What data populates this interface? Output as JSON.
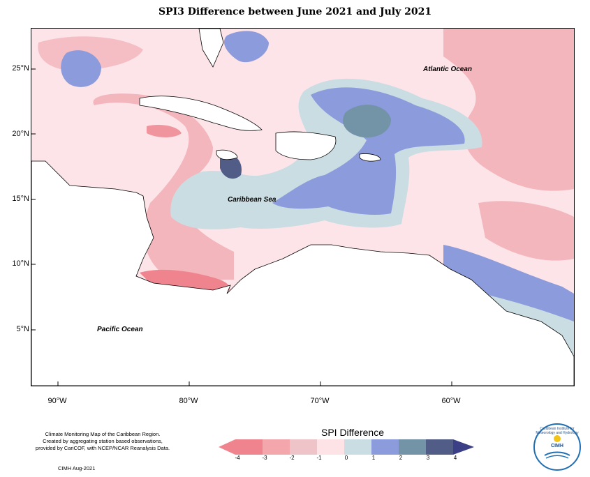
{
  "title": "SPI3 Difference between June 2021 and July 2021",
  "latitude_labels": [
    "25°N",
    "20°N",
    "15°N",
    "10°N",
    "5°N"
  ],
  "longitude_labels": [
    "90°W",
    "80°W",
    "70°W",
    "60°W"
  ],
  "place_labels": {
    "atlantic": "Atlantic Ocean",
    "caribbean": "Caribbean Sea",
    "pacific": "Pacific Ocean"
  },
  "credit_lines": [
    "Climate Monitoring Map of the Caribbean Region.",
    "Created by aggregating station based observations,",
    "provided by CariCOF, with NCEP/NCAR Reanalysis Data."
  ],
  "credit_date": "CIMH Aug-2021",
  "legend": {
    "title": "SPI Difference",
    "ticks": [
      "-4",
      "-3",
      "-2",
      "-1",
      "0",
      "1",
      "2",
      "3",
      "4"
    ],
    "colors": [
      "#f0848e",
      "#f4a6ad",
      "#eec4c9",
      "#fde2e6",
      "#fdf0f1",
      "#c9dde2",
      "#8b9bdc",
      "#7393a6",
      "#525d87",
      "#3a3f86"
    ]
  },
  "logo": {
    "text": "CIMH",
    "arc_text": "Caribbean Institute for Meteorology and Hydrology"
  },
  "colors": {
    "land": "#ffffff",
    "coastline": "#000000"
  }
}
